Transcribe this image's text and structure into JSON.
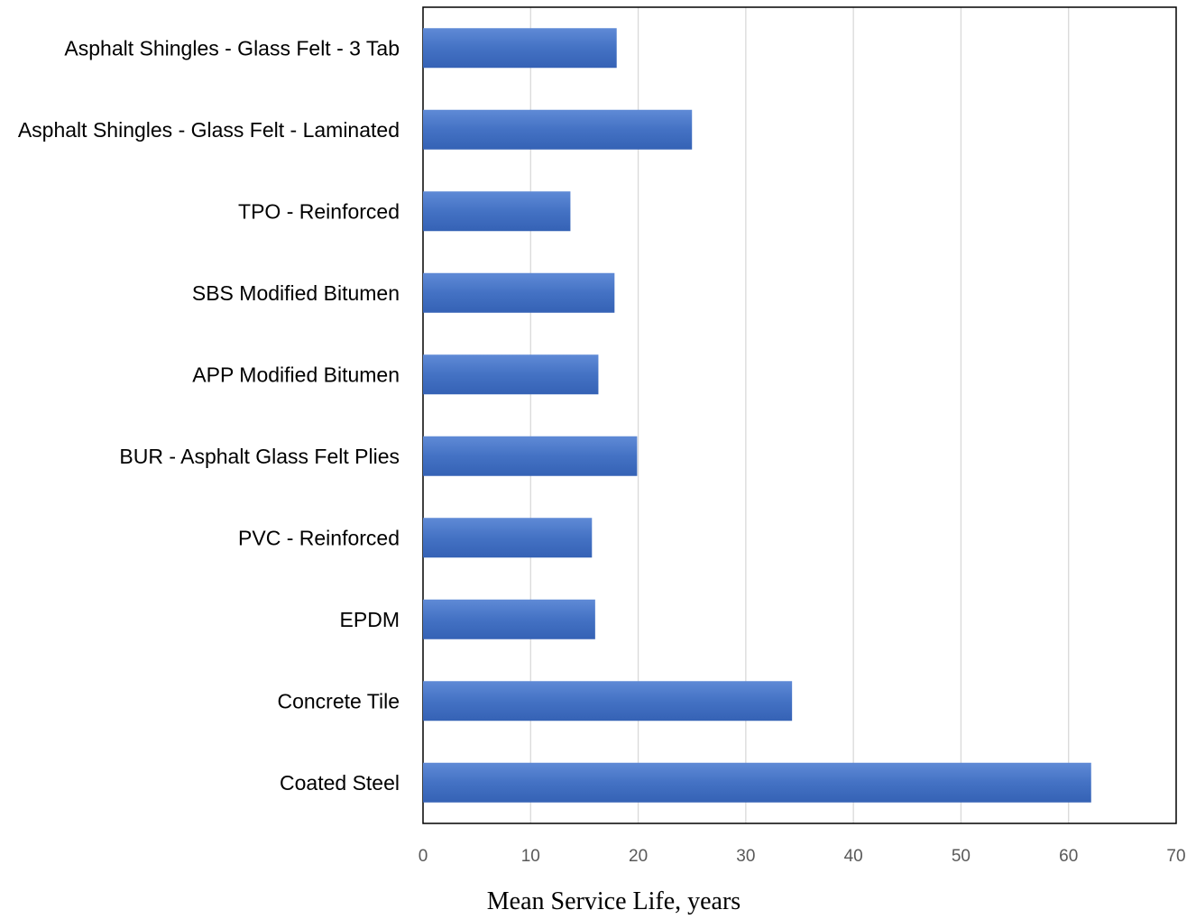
{
  "chart_data": {
    "type": "bar",
    "orientation": "horizontal",
    "categories": [
      "Asphalt Shingles - Glass Felt - 3 Tab",
      "Asphalt Shingles - Glass Felt - Laminated",
      "TPO - Reinforced",
      "SBS Modified Bitumen",
      "APP Modified Bitumen",
      "BUR - Asphalt Glass Felt Plies",
      "PVC - Reinforced",
      "EPDM",
      "Concrete Tile",
      "Coated Steel"
    ],
    "values": [
      18,
      25,
      13.7,
      17.8,
      16.3,
      19.9,
      15.7,
      16,
      34.3,
      62.1
    ],
    "title": "",
    "xlabel": "Mean Service Life, years",
    "ylabel": "",
    "xlim": [
      0,
      70
    ],
    "xticks": [
      0,
      10,
      20,
      30,
      40,
      50,
      60,
      70
    ],
    "grid": "vertical",
    "legend": "none",
    "bar_color": "#4472C4"
  }
}
